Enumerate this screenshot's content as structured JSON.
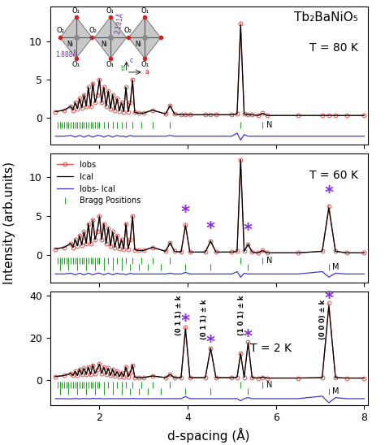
{
  "chart_data": [
    {
      "type": "line",
      "compound": "Tb₂BaNiO₅",
      "title": "T = 80 K",
      "xlim": [
        0.88,
        8.08
      ],
      "xticks": [
        2,
        4,
        6,
        8
      ],
      "ylim": [
        -3.5,
        14.5
      ],
      "yticks": [
        0,
        5,
        10
      ],
      "tick_labels": "y",
      "x": [
        1.0,
        1.2,
        1.35,
        1.4,
        1.45,
        1.5,
        1.55,
        1.6,
        1.65,
        1.7,
        1.75,
        1.8,
        1.85,
        1.9,
        1.95,
        2.0,
        2.05,
        2.1,
        2.15,
        2.2,
        2.25,
        2.3,
        2.35,
        2.4,
        2.45,
        2.5,
        2.55,
        2.6,
        2.65,
        2.7,
        2.75,
        2.8,
        2.9,
        3.0,
        3.2,
        3.5,
        3.6,
        3.7,
        3.85,
        3.95,
        4.05,
        4.4,
        4.52,
        4.64,
        5.0,
        5.12,
        5.2,
        5.28,
        5.37,
        5.46,
        5.6,
        5.7,
        5.8,
        6.5,
        7.05,
        7.2,
        7.35,
        7.6,
        8.0
      ],
      "series": [
        {
          "color": "#d9534f",
          "marker": "o",
          "line_style": "solid",
          "values": [
            0.8,
            1.0,
            1.5,
            1.0,
            2.0,
            1.2,
            2.5,
            1.3,
            3.0,
            1.5,
            4.0,
            1.5,
            4.5,
            2.0,
            3.0,
            5.0,
            2.0,
            4.0,
            1.5,
            3.5,
            1.2,
            3.0,
            1.0,
            2.5,
            0.9,
            2.0,
            0.8,
            4.0,
            0.8,
            2.0,
            5.0,
            0.7,
            0.6,
            0.6,
            1.0,
            0.5,
            1.6,
            0.5,
            0.4,
            0.4,
            0.4,
            0.4,
            0.4,
            0.4,
            0.4,
            0.5,
            12.3,
            0.5,
            0.4,
            0.4,
            0.3,
            0.6,
            0.3,
            0.3,
            0.3,
            0.3,
            0.3,
            0.3,
            0.3
          ]
        },
        {
          "color": "#000000",
          "marker": "none",
          "line_style": "solid",
          "values": [
            0.8,
            1.0,
            1.5,
            1.0,
            2.0,
            1.2,
            2.5,
            1.3,
            3.0,
            1.5,
            4.0,
            1.5,
            4.5,
            2.0,
            3.0,
            5.0,
            2.0,
            4.0,
            1.5,
            3.5,
            1.2,
            3.0,
            1.0,
            2.5,
            0.9,
            2.0,
            0.8,
            4.0,
            0.8,
            2.0,
            4.9,
            0.7,
            0.6,
            0.6,
            1.0,
            0.5,
            1.6,
            0.5,
            0.4,
            0.4,
            0.4,
            0.4,
            0.4,
            0.4,
            0.4,
            0.5,
            12.1,
            0.5,
            0.4,
            0.4,
            0.3,
            0.6,
            0.3,
            0.3,
            0.3,
            0.3,
            0.3,
            0.3,
            0.3
          ]
        },
        {
          "color": "#3a3ac8",
          "marker": "none",
          "line_style": "solid",
          "values": [
            -2.4,
            -2.4,
            -2.3,
            -2.4,
            -2.5,
            -2.4,
            -2.3,
            -2.4,
            -2.5,
            -2.4,
            -2.3,
            -2.4,
            -2.5,
            -2.4,
            -2.3,
            -2.3,
            -2.4,
            -2.5,
            -2.4,
            -2.3,
            -2.4,
            -2.5,
            -2.4,
            -2.3,
            -2.4,
            -2.4,
            -2.4,
            -2.5,
            -2.4,
            -2.3,
            -2.4,
            -2.4,
            -2.4,
            -2.4,
            -2.4,
            -2.4,
            -2.3,
            -2.4,
            -2.4,
            -2.4,
            -2.4,
            -2.4,
            -2.4,
            -2.4,
            -2.4,
            -2.0,
            -2.9,
            -2.2,
            -2.4,
            -2.4,
            -2.4,
            -2.4,
            -2.4,
            -2.4,
            -2.4,
            -2.4,
            -2.4,
            -2.4,
            -2.4
          ]
        }
      ],
      "bragg": {
        "color": "#2ca02c",
        "rows": [
          {
            "label": "N",
            "y": -0.9,
            "positions": [
              1.05,
              1.1,
              1.15,
              1.2,
              1.25,
              1.3,
              1.35,
              1.4,
              1.45,
              1.5,
              1.55,
              1.6,
              1.65,
              1.7,
              1.75,
              1.8,
              1.85,
              1.9,
              1.95,
              2.0,
              2.1,
              2.2,
              2.3,
              2.4,
              2.5,
              2.6,
              2.75,
              2.95,
              3.2,
              3.6,
              5.2,
              5.7
            ]
          }
        ]
      },
      "inset": {
        "apical": "O₁",
        "equatorial": "O₂",
        "center": "Ni",
        "bond_short": "1.888Å",
        "bond_long": "2.181Å",
        "axis_up": "c",
        "axis_out": "b",
        "axis_right": "a"
      }
    },
    {
      "type": "line",
      "title": "T = 60 K",
      "ylabel": "Intensity (arb.units)",
      "xlim": [
        0.88,
        8.08
      ],
      "xticks": [
        2,
        4,
        6,
        8
      ],
      "ylim": [
        -3.5,
        13
      ],
      "yticks": [
        0,
        5,
        10
      ],
      "tick_labels": "y",
      "legend": "upper left",
      "x": [
        1.0,
        1.2,
        1.35,
        1.4,
        1.45,
        1.5,
        1.55,
        1.6,
        1.65,
        1.7,
        1.75,
        1.8,
        1.85,
        1.9,
        1.95,
        2.0,
        2.05,
        2.1,
        2.15,
        2.2,
        2.25,
        2.3,
        2.35,
        2.4,
        2.45,
        2.5,
        2.55,
        2.6,
        2.65,
        2.7,
        2.75,
        2.8,
        2.9,
        3.0,
        3.2,
        3.5,
        3.6,
        3.7,
        3.85,
        3.95,
        4.05,
        4.4,
        4.52,
        4.64,
        5.0,
        5.12,
        5.2,
        5.28,
        5.37,
        5.46,
        5.6,
        5.7,
        5.8,
        6.5,
        7.05,
        7.2,
        7.35,
        7.6,
        8.0
      ],
      "series": [
        {
          "name": "Iobs",
          "color": "#d9534f",
          "marker": "o",
          "line_style": "solid",
          "values": [
            0.8,
            1.0,
            1.5,
            1.0,
            2.0,
            1.2,
            2.5,
            1.3,
            3.0,
            1.5,
            4.0,
            1.5,
            4.5,
            2.0,
            3.0,
            5.0,
            2.0,
            4.0,
            1.5,
            3.5,
            1.2,
            3.0,
            1.0,
            2.5,
            0.9,
            2.0,
            0.8,
            4.0,
            0.8,
            2.0,
            5.0,
            0.7,
            0.6,
            0.6,
            1.0,
            0.5,
            1.6,
            0.5,
            0.4,
            3.9,
            0.4,
            0.4,
            1.8,
            0.4,
            0.4,
            0.5,
            12.2,
            0.5,
            1.4,
            0.4,
            0.3,
            0.6,
            0.3,
            0.3,
            0.5,
            6.3,
            0.5,
            0.3,
            0.3
          ]
        },
        {
          "name": "Ical",
          "color": "#000000",
          "marker": "none",
          "line_style": "solid",
          "values": [
            0.8,
            1.0,
            1.5,
            1.0,
            2.0,
            1.2,
            2.5,
            1.3,
            3.0,
            1.5,
            4.0,
            1.5,
            4.5,
            2.0,
            3.0,
            5.0,
            2.0,
            4.0,
            1.5,
            3.5,
            1.2,
            3.0,
            1.0,
            2.5,
            0.9,
            2.0,
            0.8,
            4.0,
            0.8,
            2.0,
            5.0,
            0.7,
            0.6,
            0.6,
            1.0,
            0.5,
            1.6,
            0.5,
            0.4,
            3.8,
            0.4,
            0.4,
            1.8,
            0.4,
            0.4,
            0.5,
            12.2,
            0.5,
            1.4,
            0.4,
            0.3,
            0.6,
            0.3,
            0.3,
            0.5,
            6.0,
            0.5,
            0.3,
            0.3
          ]
        },
        {
          "name": "Iobs- Ical",
          "color": "#3a3ac8",
          "marker": "none",
          "line_style": "solid",
          "values": [
            -2.4,
            -2.4,
            -2.3,
            -2.4,
            -2.5,
            -2.4,
            -2.3,
            -2.4,
            -2.5,
            -2.4,
            -2.3,
            -2.4,
            -2.5,
            -2.4,
            -2.3,
            -2.3,
            -2.4,
            -2.5,
            -2.4,
            -2.3,
            -2.4,
            -2.5,
            -2.4,
            -2.3,
            -2.4,
            -2.4,
            -2.4,
            -2.5,
            -2.4,
            -2.3,
            -2.4,
            -2.4,
            -2.4,
            -2.4,
            -2.4,
            -2.4,
            -2.3,
            -2.4,
            -2.4,
            -2.2,
            -2.4,
            -2.4,
            -2.4,
            -2.4,
            -2.4,
            -2.1,
            -2.8,
            -2.3,
            -2.4,
            -2.4,
            -2.4,
            -2.4,
            -2.4,
            -2.4,
            -2.1,
            -2.8,
            -2.3,
            -2.4,
            -2.4
          ]
        }
      ],
      "bragg": {
        "name": "Bragg Positions",
        "color": "#2ca02c",
        "rows": [
          {
            "label": "N",
            "y": -0.7,
            "positions": [
              1.05,
              1.1,
              1.15,
              1.2,
              1.25,
              1.3,
              1.35,
              1.4,
              1.45,
              1.5,
              1.55,
              1.6,
              1.65,
              1.7,
              1.75,
              1.8,
              1.85,
              1.9,
              1.95,
              2.0,
              2.1,
              2.2,
              2.3,
              2.4,
              2.5,
              2.6,
              2.75,
              2.95,
              3.2,
              3.6,
              5.2,
              5.7
            ]
          },
          {
            "label": "M",
            "y": -1.5,
            "positions": [
              1.1,
              1.3,
              1.5,
              1.7,
              1.9,
              2.1,
              2.3,
              2.5,
              2.7,
              2.9,
              3.1,
              3.4,
              3.95,
              4.52,
              5.37,
              7.2
            ]
          }
        ]
      },
      "stars": {
        "symbol": "*",
        "color": "#8a2be2",
        "points": [
          {
            "x": 3.95,
            "y": 5.4
          },
          {
            "x": 4.52,
            "y": 3.4
          },
          {
            "x": 5.37,
            "y": 3.1
          },
          {
            "x": 7.2,
            "y": 7.9
          }
        ]
      }
    },
    {
      "type": "line",
      "title": "T = 2 K",
      "xlabel": "d-spacing (Å)",
      "xlim": [
        0.88,
        8.08
      ],
      "xticks": [
        2,
        4,
        6,
        8
      ],
      "ylim": [
        -12,
        42
      ],
      "yticks": [
        0,
        20,
        40
      ],
      "x": [
        1.0,
        1.2,
        1.35,
        1.4,
        1.45,
        1.5,
        1.55,
        1.6,
        1.65,
        1.7,
        1.75,
        1.8,
        1.85,
        1.9,
        1.95,
        2.0,
        2.05,
        2.1,
        2.15,
        2.2,
        2.25,
        2.3,
        2.35,
        2.4,
        2.45,
        2.5,
        2.55,
        2.6,
        2.65,
        2.7,
        2.75,
        2.8,
        2.9,
        3.0,
        3.2,
        3.5,
        3.6,
        3.7,
        3.85,
        3.95,
        4.05,
        4.4,
        4.52,
        4.64,
        5.0,
        5.12,
        5.2,
        5.28,
        5.37,
        5.46,
        5.6,
        5.7,
        5.8,
        6.5,
        7.05,
        7.2,
        7.35,
        7.6,
        8.0
      ],
      "series": [
        {
          "color": "#d9534f",
          "marker": "o",
          "line_style": "solid",
          "values": [
            1.5,
            2.0,
            3.0,
            2.0,
            4.0,
            2.0,
            5.0,
            2.5,
            5.5,
            2.5,
            6.0,
            2.5,
            7.0,
            3.0,
            5.0,
            7.5,
            3.0,
            6.0,
            2.5,
            5.5,
            2.0,
            5.0,
            1.8,
            4.0,
            1.5,
            3.5,
            1.5,
            6.0,
            1.5,
            3.5,
            7.0,
            1.2,
            1.0,
            1.0,
            1.8,
            1.0,
            2.5,
            1.0,
            1.0,
            25.0,
            1.0,
            1.0,
            15.0,
            1.0,
            1.0,
            1.2,
            12.5,
            1.2,
            18.0,
            1.0,
            0.8,
            1.2,
            0.8,
            0.8,
            1.0,
            36.5,
            1.0,
            0.8,
            0.8
          ]
        },
        {
          "color": "#000000",
          "marker": "none",
          "line_style": "solid",
          "values": [
            1.5,
            2.0,
            3.0,
            2.0,
            4.0,
            2.0,
            5.0,
            2.5,
            5.5,
            2.5,
            6.0,
            2.5,
            7.0,
            3.0,
            5.0,
            7.5,
            3.0,
            6.0,
            2.5,
            5.5,
            2.0,
            5.0,
            1.8,
            4.0,
            1.5,
            3.5,
            1.5,
            6.0,
            1.5,
            3.5,
            7.0,
            1.2,
            1.0,
            1.0,
            1.8,
            1.0,
            2.5,
            1.0,
            1.0,
            24.0,
            1.0,
            1.0,
            15.0,
            1.0,
            1.0,
            1.2,
            12.5,
            1.2,
            17.5,
            1.0,
            0.8,
            1.2,
            0.8,
            0.8,
            1.0,
            35.0,
            1.0,
            0.8,
            0.8
          ]
        },
        {
          "color": "#3a3ac8",
          "marker": "none",
          "line_style": "solid",
          "values": [
            -9,
            -9,
            -9.1,
            -9,
            -8.9,
            -9,
            -9.1,
            -9,
            -8.9,
            -9,
            -9,
            -9.1,
            -8.8,
            -9,
            -9,
            -8.9,
            -9,
            -9.1,
            -9,
            -9,
            -9,
            -9,
            -9,
            -9,
            -9,
            -9,
            -9,
            -9,
            -9,
            -9,
            -8.9,
            -9,
            -9,
            -9,
            -9,
            -9,
            -9,
            -9,
            -9,
            -8.0,
            -9,
            -9,
            -9,
            -9,
            -9,
            -9,
            -10.0,
            -9,
            -8.5,
            -9,
            -9,
            -9,
            -9,
            -9,
            -7.8,
            -11.0,
            -8.5,
            -9,
            -9
          ]
        }
      ],
      "bragg": {
        "color": "#2ca02c",
        "rows": [
          {
            "label": "N",
            "y": -2.5,
            "positions": [
              1.05,
              1.1,
              1.15,
              1.2,
              1.25,
              1.3,
              1.35,
              1.4,
              1.45,
              1.5,
              1.55,
              1.6,
              1.65,
              1.7,
              1.75,
              1.8,
              1.85,
              1.9,
              1.95,
              2.0,
              2.1,
              2.2,
              2.3,
              2.4,
              2.5,
              2.6,
              2.75,
              2.95,
              3.2,
              3.6,
              5.2,
              5.7
            ]
          },
          {
            "label": "M",
            "y": -5.5,
            "positions": [
              1.1,
              1.3,
              1.5,
              1.7,
              1.9,
              2.1,
              2.3,
              2.5,
              2.7,
              2.9,
              3.1,
              3.4,
              3.95,
              4.52,
              5.37,
              7.2
            ]
          }
        ]
      },
      "stars": {
        "symbol": "*",
        "color": "#8a2be2",
        "points": [
          {
            "x": 3.95,
            "y": 27.5
          },
          {
            "x": 4.52,
            "y": 17.5
          },
          {
            "x": 5.37,
            "y": 20.5
          },
          {
            "x": 7.2,
            "y": 38.5
          }
        ]
      },
      "peak_labels": [
        {
          "x": 3.95,
          "y": 21,
          "text": "(0 1 1) ± k"
        },
        {
          "x": 4.52,
          "y": 19,
          "text": "(0 1 1) ± k"
        },
        {
          "x": 5.37,
          "y": 21,
          "text": "(1 0 1) ± k"
        },
        {
          "x": 7.2,
          "y": 19,
          "text": "(0 0 0) ± k"
        }
      ]
    }
  ]
}
